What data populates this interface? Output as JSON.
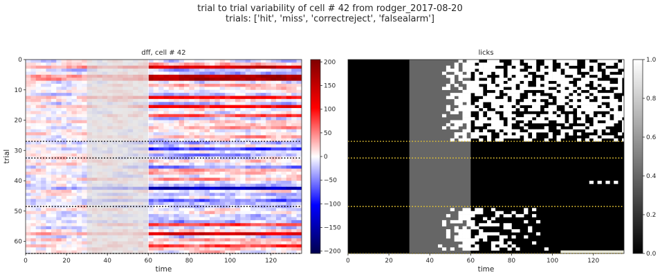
{
  "suptitle": {
    "line1": "trial to trial variability of cell # 42 from rodger_2017-08-20",
    "line2": "trials:  ['hit', 'miss', 'correctreject', 'falsealarm']"
  },
  "chart_data": [
    {
      "type": "heatmap",
      "title": "dff, cell # 42",
      "xlabel": "time",
      "ylabel": "trial",
      "xlim": [
        0,
        135
      ],
      "ylim": [
        64,
        0
      ],
      "xticks": [
        0,
        20,
        40,
        60,
        80,
        100,
        120
      ],
      "yticks": [
        0,
        10,
        20,
        30,
        40,
        50,
        60
      ],
      "colormap": "seismic",
      "colorbar": {
        "min": -205,
        "max": 205,
        "ticks": [
          200,
          150,
          100,
          50,
          0,
          -50,
          -100,
          -150,
          -200
        ]
      },
      "shaded_interval": [
        30,
        60
      ],
      "shade_color": "#dcdcdc",
      "group_boundaries": [
        27,
        32.5,
        48.5,
        64
      ],
      "boundary_color": "#000000",
      "n_trials": 64
    },
    {
      "type": "heatmap",
      "title": "licks",
      "xlabel": "time",
      "xlim": [
        0,
        135
      ],
      "ylim": [
        64,
        0
      ],
      "xticks": [
        0,
        20,
        40,
        60,
        80,
        100,
        120
      ],
      "colormap": "gray",
      "colorbar": {
        "min": 0,
        "max": 1,
        "ticks": [
          1.0,
          0.8,
          0.6,
          0.4,
          0.2,
          0.0
        ]
      },
      "shaded_interval": [
        30,
        60
      ],
      "shade_value": 0.4,
      "group_boundaries": [
        27,
        32.5,
        48.5,
        64
      ],
      "boundary_color": "#e3c334",
      "n_trials": 64
    }
  ]
}
